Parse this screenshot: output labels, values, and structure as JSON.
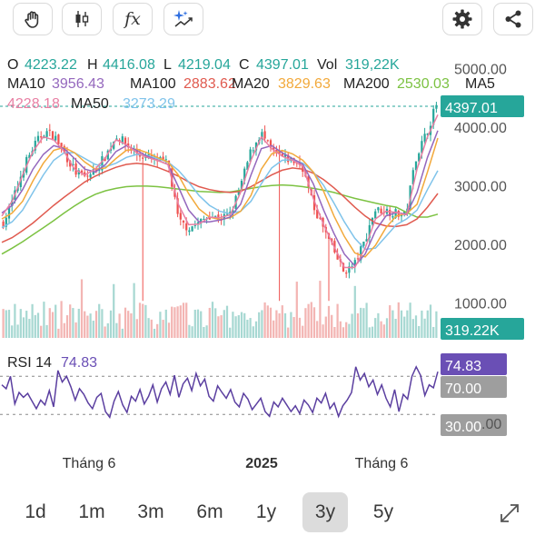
{
  "toolbar": {
    "left_icons": [
      "hand-icon",
      "candlestick-icon",
      "function-icon",
      "sparkle-chart-icon"
    ],
    "function_glyph": "fx",
    "right_icons": [
      "gear-icon",
      "share-icon"
    ]
  },
  "ohlc": {
    "o_label": "O",
    "o_value": "4223.22",
    "h_label": "H",
    "h_value": "4416.08",
    "l_label": "L",
    "l_value": "4219.04",
    "c_label": "C",
    "c_value": "4397.01",
    "vol_label": "Vol",
    "vol_value": "319,22K"
  },
  "ma_legend": [
    {
      "label": "MA10",
      "value": "3956.43",
      "color": "#9467bd"
    },
    {
      "label": "MA100",
      "value": "2883.62",
      "color": "#e05a4f"
    },
    {
      "label": "MA20",
      "value": "3829.63",
      "color": "#f2a93b"
    },
    {
      "label": "MA200",
      "value": "2530.03",
      "color": "#7cc242"
    },
    {
      "label": "MA5",
      "value": "4228.18",
      "color": "#e87fa3"
    },
    {
      "label": "MA50",
      "value": "3273.29",
      "color": "#7fc3ea"
    }
  ],
  "colors": {
    "up": "#26a69a",
    "down": "#ef5350",
    "label_green": "#26a69a",
    "rsi_line": "#5b3fa0",
    "rsi_badge": "#6a4fb5",
    "gray_badge": "#9e9e9e",
    "price_badge": "#26a69a"
  },
  "price_badge": "4397.01",
  "volume_badge": "319.22K",
  "rsi": {
    "label": "RSI 14",
    "value": "74.83",
    "upper_level": "70.00",
    "lower_level": "30.00"
  },
  "range_buttons": [
    {
      "label": "1d",
      "active": false
    },
    {
      "label": "1m",
      "active": false
    },
    {
      "label": "3m",
      "active": false
    },
    {
      "label": "6m",
      "active": false
    },
    {
      "label": "1y",
      "active": false
    },
    {
      "label": "3y",
      "active": true
    },
    {
      "label": "5y",
      "active": false
    }
  ],
  "chart_data": {
    "type": "candlestick",
    "price_axis": {
      "ticks": [
        "5000.00",
        "4000.00",
        "3000.00",
        "2000.00",
        "1000.00"
      ],
      "ylim": [
        700,
        5300
      ]
    },
    "rsi_axis": {
      "ticks": [
        "70.00",
        "30.00"
      ],
      "ylim": [
        15,
        95
      ]
    },
    "x_ticks": [
      "Tháng 6",
      "2025",
      "Tháng 6"
    ],
    "close": [
      2380,
      2800,
      3350,
      3700,
      3950,
      3850,
      3550,
      3250,
      3150,
      3300,
      3550,
      3880,
      3700,
      3550,
      3500,
      3450,
      3380,
      2400,
      2300,
      2380,
      2520,
      2450,
      2520,
      3000,
      3600,
      3920,
      3600,
      3500,
      3450,
      3350,
      2700,
      2300,
      1920,
      1550,
      1650,
      2050,
      2600,
      2600,
      2550,
      2500,
      3500,
      3900,
      4397
    ],
    "ma_series": [
      {
        "name": "MA10",
        "values": [
          2550,
          2680,
          2950,
          3300,
          3550,
          3700,
          3650,
          3480,
          3300,
          3250,
          3380,
          3600,
          3700,
          3620,
          3520,
          3450,
          3380,
          3000,
          2600,
          2400,
          2400,
          2430,
          2480,
          2700,
          3200,
          3650,
          3700,
          3580,
          3480,
          3380,
          3050,
          2600,
          2200,
          1850,
          1650,
          1850,
          2250,
          2500,
          2560,
          2530,
          2900,
          3500,
          3956
        ]
      },
      {
        "name": "MA100",
        "values": [
          2050,
          2130,
          2250,
          2380,
          2530,
          2680,
          2820,
          2950,
          3080,
          3180,
          3260,
          3330,
          3380,
          3400,
          3380,
          3330,
          3260,
          3180,
          3080,
          3000,
          2950,
          2920,
          2900,
          2920,
          3000,
          3100,
          3200,
          3280,
          3320,
          3300,
          3230,
          3120,
          2980,
          2820,
          2650,
          2500,
          2380,
          2330,
          2320,
          2350,
          2450,
          2650,
          2884
        ]
      },
      {
        "name": "MA20",
        "values": [
          2450,
          2550,
          2750,
          3100,
          3400,
          3620,
          3670,
          3580,
          3420,
          3300,
          3320,
          3480,
          3620,
          3640,
          3580,
          3500,
          3420,
          3200,
          2880,
          2620,
          2480,
          2440,
          2470,
          2580,
          2850,
          3300,
          3560,
          3620,
          3560,
          3450,
          3250,
          2920,
          2500,
          2150,
          1870,
          1800,
          2000,
          2300,
          2500,
          2540,
          2700,
          3250,
          3830
        ]
      },
      {
        "name": "MA200",
        "values": [
          1850,
          1950,
          2060,
          2180,
          2300,
          2420,
          2550,
          2670,
          2780,
          2870,
          2930,
          2970,
          3000,
          3010,
          3010,
          3000,
          2980,
          2960,
          2940,
          2920,
          2910,
          2900,
          2910,
          2940,
          2970,
          3000,
          3020,
          3030,
          3020,
          3000,
          2970,
          2940,
          2900,
          2850,
          2800,
          2760,
          2720,
          2680,
          2650,
          2560,
          2480,
          2480,
          2530
        ]
      },
      {
        "name": "MA5",
        "values": [
          2500,
          2750,
          3200,
          3600,
          3850,
          3800,
          3600,
          3300,
          3200,
          3300,
          3500,
          3800,
          3720,
          3580,
          3500,
          3450,
          3380,
          2700,
          2350,
          2360,
          2480,
          2470,
          2520,
          2900,
          3450,
          3850,
          3650,
          3520,
          3450,
          3350,
          2800,
          2350,
          1980,
          1620,
          1620,
          1950,
          2450,
          2580,
          2560,
          2520,
          3300,
          3850,
          4228
        ]
      },
      {
        "name": "MA50",
        "values": [
          2300,
          2400,
          2600,
          2900,
          3200,
          3450,
          3580,
          3580,
          3480,
          3380,
          3340,
          3400,
          3500,
          3550,
          3530,
          3480,
          3420,
          3280,
          3080,
          2850,
          2680,
          2580,
          2540,
          2580,
          2750,
          3050,
          3320,
          3450,
          3460,
          3400,
          3250,
          3020,
          2720,
          2400,
          2120,
          1930,
          1950,
          2150,
          2350,
          2450,
          2600,
          2950,
          3273
        ]
      }
    ],
    "rsi_values": [
      61,
      57,
      70,
      41,
      53,
      48,
      52,
      44,
      36,
      45,
      40,
      55,
      38,
      76,
      64,
      70,
      59,
      45,
      57,
      51,
      42,
      36,
      48,
      52,
      33,
      27,
      44,
      54,
      40,
      32,
      49,
      44,
      56,
      41,
      49,
      61,
      43,
      57,
      64,
      51,
      71,
      48,
      62,
      68,
      55,
      73,
      60,
      67,
      49,
      44,
      60,
      53,
      47,
      56,
      43,
      38,
      52,
      46,
      35,
      41,
      47,
      33,
      28,
      43,
      38,
      47,
      40,
      33,
      39,
      31,
      45,
      40,
      32,
      47,
      42,
      52,
      36,
      42,
      28,
      39,
      45,
      53,
      80,
      66,
      73,
      59,
      66,
      51,
      61,
      47,
      38,
      56,
      33,
      51,
      46,
      70,
      80,
      71,
      50,
      61,
      58,
      74.83
    ]
  }
}
